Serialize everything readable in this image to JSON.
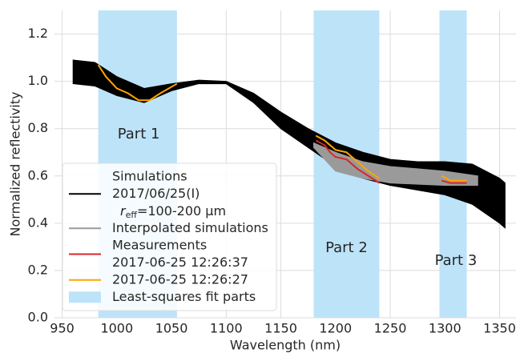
{
  "chart_data": {
    "type": "band-line",
    "xlabel": "Wavelength (nm)",
    "ylabel": "Normalized reflectivity",
    "xlim": [
      943,
      1365
    ],
    "ylim": [
      0,
      1.3
    ],
    "xticks": [
      950,
      1000,
      1050,
      1100,
      1150,
      1200,
      1250,
      1300,
      1350
    ],
    "yticks": [
      {
        "value": 0,
        "label": "0.0"
      },
      0.2,
      0.4,
      0.6,
      0.8,
      {
        "value": 1,
        "label": "1.0"
      },
      1.2
    ],
    "grid": true,
    "legend": "lower left",
    "spans": {
      "name": "Least-squares fit parts",
      "color": "#bde3f9",
      "ranges": [
        [
          983,
          1055
        ],
        [
          1180,
          1240
        ],
        [
          1295,
          1320
        ]
      ]
    },
    "bands": [
      {
        "name": [
          "Simulations",
          "2017/06/25(I)"
        ],
        "name_math": {
          "symbol": "r",
          "subscript": "eff",
          "text": "=100-200 µm"
        },
        "color": "#000000",
        "x": [
          960,
          980,
          1000,
          1025,
          1050,
          1075,
          1100,
          1125,
          1150,
          1175,
          1200,
          1225,
          1250,
          1275,
          1300,
          1325,
          1350,
          1355
        ],
        "upper": [
          1.09,
          1.08,
          1.02,
          0.97,
          0.99,
          1.005,
          1.0,
          0.95,
          0.87,
          0.8,
          0.74,
          0.7,
          0.67,
          0.66,
          0.66,
          0.65,
          0.59,
          0.57
        ],
        "lower": [
          0.99,
          0.98,
          0.94,
          0.91,
          0.96,
          0.99,
          0.99,
          0.91,
          0.8,
          0.72,
          0.64,
          0.59,
          0.56,
          0.54,
          0.52,
          0.48,
          0.4,
          0.38
        ]
      },
      {
        "name": "Interpolated simulations",
        "color": "#9a9a9a",
        "x": [
          1180,
          1200,
          1225,
          1250,
          1275,
          1300,
          1330
        ],
        "upper": [
          0.74,
          0.7,
          0.66,
          0.64,
          0.63,
          0.62,
          0.6
        ],
        "lower": [
          0.72,
          0.62,
          0.59,
          0.57,
          0.565,
          0.56,
          0.56
        ]
      }
    ],
    "series": [
      {
        "name": [
          "Measurements",
          "2017-06-25 12:26:37"
        ],
        "color": "#d62728",
        "x": [
          1182,
          1190,
          1195,
          1200,
          1210,
          1220,
          1230,
          1240,
          1268,
          1297,
          1305,
          1310,
          1320
        ],
        "values": [
          0.75,
          0.73,
          0.7,
          0.68,
          0.67,
          0.63,
          0.6,
          0.57,
          null,
          0.58,
          0.57,
          0.57,
          0.57
        ]
      },
      {
        "name": "2017-06-25 12:26:27",
        "color": "#ffa500",
        "x": [
          983,
          990,
          1000,
          1010,
          1020,
          1030,
          1040,
          1055,
          1118,
          1182,
          1190,
          1200,
          1210,
          1220,
          1230,
          1240,
          1268,
          1297,
          1305,
          1310,
          1320
        ],
        "values": [
          1.07,
          1.02,
          0.97,
          0.95,
          0.92,
          0.92,
          0.95,
          0.99,
          null,
          0.77,
          0.75,
          0.71,
          0.7,
          0.66,
          0.62,
          0.59,
          null,
          0.6,
          0.58,
          0.58,
          0.58
        ]
      }
    ],
    "annotations": [
      {
        "text": "Part 1",
        "x": 1020,
        "y": 0.776
      },
      {
        "text": "Part 2",
        "x": 1210,
        "y": 0.295
      },
      {
        "text": "Part 3",
        "x": 1310,
        "y": 0.24
      }
    ]
  }
}
